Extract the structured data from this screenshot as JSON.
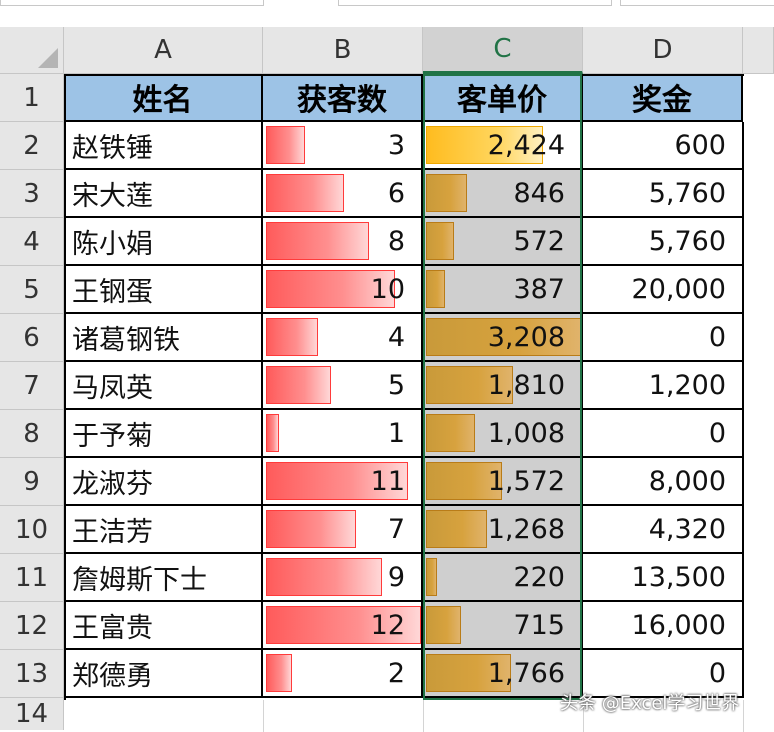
{
  "columns": [
    "A",
    "B",
    "C",
    "D"
  ],
  "rows": [
    "1",
    "2",
    "3",
    "4",
    "5",
    "6",
    "7",
    "8",
    "9",
    "10",
    "11",
    "12",
    "13",
    "14"
  ],
  "headers": [
    "姓名",
    "获客数",
    "客单价",
    "奖金"
  ],
  "data": [
    {
      "name": "赵铁锤",
      "count": "3",
      "count_val": 3,
      "price": "2,424",
      "price_val": 2424,
      "bonus": "600"
    },
    {
      "name": "宋大莲",
      "count": "6",
      "count_val": 6,
      "price": "846",
      "price_val": 846,
      "bonus": "5,760"
    },
    {
      "name": "陈小娟",
      "count": "8",
      "count_val": 8,
      "price": "572",
      "price_val": 572,
      "bonus": "5,760"
    },
    {
      "name": "王钢蛋",
      "count": "10",
      "count_val": 10,
      "price": "387",
      "price_val": 387,
      "bonus": "20,000"
    },
    {
      "name": "诸葛钢铁",
      "count": "4",
      "count_val": 4,
      "price": "3,208",
      "price_val": 3208,
      "bonus": "0"
    },
    {
      "name": "马凤英",
      "count": "5",
      "count_val": 5,
      "price": "1,810",
      "price_val": 1810,
      "bonus": "1,200"
    },
    {
      "name": "于予菊",
      "count": "1",
      "count_val": 1,
      "price": "1,008",
      "price_val": 1008,
      "bonus": "0"
    },
    {
      "name": "龙淑芬",
      "count": "11",
      "count_val": 11,
      "price": "1,572",
      "price_val": 1572,
      "bonus": "8,000"
    },
    {
      "name": "王洁芳",
      "count": "7",
      "count_val": 7,
      "price": "1,268",
      "price_val": 1268,
      "bonus": "4,320"
    },
    {
      "name": "詹姆斯下士",
      "count": "9",
      "count_val": 9,
      "price": "220",
      "price_val": 220,
      "bonus": "13,500"
    },
    {
      "name": "王富贵",
      "count": "12",
      "count_val": 12,
      "price": "715",
      "price_val": 715,
      "bonus": "16,000"
    },
    {
      "name": "郑德勇",
      "count": "2",
      "count_val": 2,
      "price": "1,766",
      "price_val": 1766,
      "bonus": "0"
    }
  ],
  "count_max": 12,
  "price_max": 3208,
  "colors": {
    "header_fill": "#9dc3e6",
    "count_bar": "#ff5b5b",
    "price_bar": "#c99a3a",
    "price_bar_first": "#ffbc1f",
    "selection": "#217346"
  },
  "selected_column": "C",
  "watermark": "头条 @Excel学习世界"
}
